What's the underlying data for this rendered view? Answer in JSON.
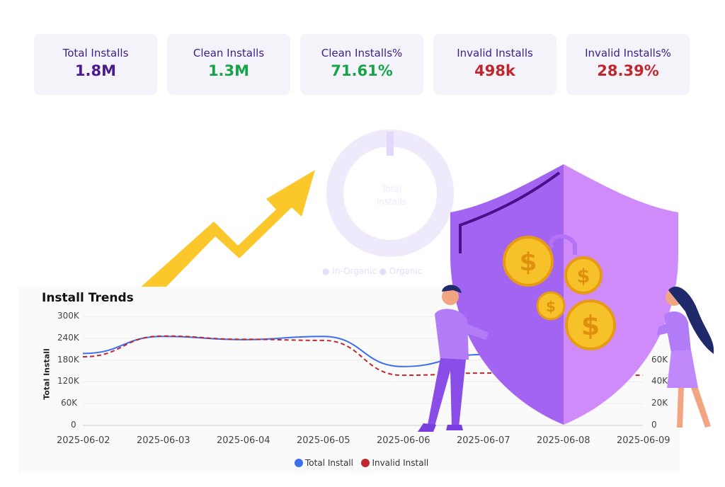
{
  "kpis": [
    {
      "label": "Total Installs",
      "value": "1.8M",
      "color": "#4b1a8f"
    },
    {
      "label": "Clean Installs",
      "value": "1.3M",
      "color": "#16a34a"
    },
    {
      "label": "Clean Installs%",
      "value": "71.61%",
      "color": "#16a34a"
    },
    {
      "label": "Invalid Installs",
      "value": "498k",
      "color": "#c0262d"
    },
    {
      "label": "Invalid Installs%",
      "value": "28.39%",
      "color": "#c0262d"
    }
  ],
  "donut": {
    "center_line1": "Total",
    "center_line2": "Installs",
    "legend": "● In-Organic ● Organic"
  },
  "chart_data": {
    "type": "line",
    "title": "Install Trends",
    "ylabel": "Total Install",
    "categories": [
      "2025-06-02",
      "2025-06-03",
      "2025-06-04",
      "2025-06-05",
      "2025-06-06",
      "2025-06-07",
      "2025-06-08",
      "2025-06-09"
    ],
    "y_ticks": [
      "300K",
      "240K",
      "180K",
      "120K",
      "60K",
      "0"
    ],
    "y2_ticks": [
      "60K",
      "40K",
      "20K",
      "0"
    ],
    "ylim": [
      0,
      300000
    ],
    "y2lim": [
      0,
      100000
    ],
    "series": [
      {
        "name": "Total Install",
        "axis": "left",
        "color": "#3b6ff0",
        "values": [
          198000,
          245000,
          236000,
          245000,
          162000,
          195000,
          200000,
          205000
        ]
      },
      {
        "name": "Invalid Install",
        "axis": "right",
        "color": "#c0262d",
        "dashed": true,
        "values": [
          63000,
          82000,
          79000,
          78000,
          46000,
          48000,
          50000,
          46000
        ]
      }
    ],
    "legend_position": "bottom"
  },
  "decor": {
    "arrow_color": "#fcc72a",
    "shield_left": "#a364f2",
    "shield_right": "#d08bfb",
    "coin_color": "#f7c12a"
  }
}
